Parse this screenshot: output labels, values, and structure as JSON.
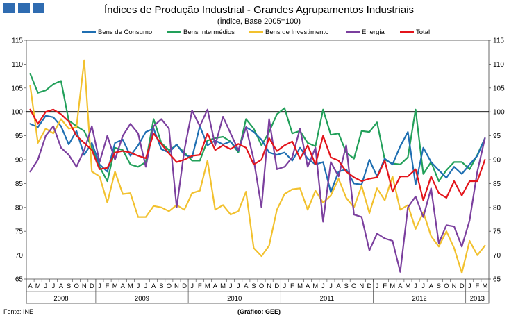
{
  "logo": {
    "name": "publisher-logo"
  },
  "header": {
    "title": "Índices de Produção Industrial - Grandes Agrupamentos Industriais",
    "subtitle": "(Índice, Base 2005=100)"
  },
  "footer": {
    "source": "Fonte: INE",
    "credit": "(Gráfico: GEE)"
  },
  "chart_data": {
    "type": "line",
    "title": "Índices de Produção Industrial - Grandes Agrupamentos Industriais",
    "subtitle": "(Índice, Base 2005=100)",
    "ylim": [
      65,
      115
    ],
    "yticks": [
      65,
      70,
      75,
      80,
      85,
      90,
      95,
      100,
      105,
      110,
      115
    ],
    "reference_line": 100,
    "grid": false,
    "legend_position": "top",
    "month_labels": [
      "A",
      "M",
      "J",
      "J",
      "A",
      "S",
      "O",
      "N",
      "D",
      "J",
      "F",
      "M",
      "A",
      "M",
      "J",
      "J",
      "A",
      "S",
      "O",
      "N",
      "D",
      "J",
      "F",
      "M",
      "A",
      "M",
      "J",
      "J",
      "A",
      "S",
      "O",
      "N",
      "D",
      "J",
      "F",
      "M",
      "A",
      "M",
      "J",
      "J",
      "A",
      "S",
      "O",
      "N",
      "D",
      "J",
      "F",
      "M",
      "A",
      "M",
      "J",
      "J",
      "A",
      "S",
      "O",
      "N",
      "D",
      "J",
      "F",
      "M"
    ],
    "year_groups": [
      {
        "label": "2008",
        "start": 0,
        "count": 9
      },
      {
        "label": "2009",
        "start": 9,
        "count": 12
      },
      {
        "label": "2010",
        "start": 21,
        "count": 12
      },
      {
        "label": "2011",
        "start": 33,
        "count": 12
      },
      {
        "label": "2012",
        "start": 45,
        "count": 12
      },
      {
        "label": "2013",
        "start": 57,
        "count": 3
      }
    ],
    "series": [
      {
        "name": "Bens de Consumo",
        "color": "#1f6fb2",
        "values": [
          97.5,
          96.8,
          99.2,
          98.9,
          97.0,
          93.2,
          96.0,
          91.0,
          93.5,
          89.0,
          87.5,
          93.5,
          94.2,
          90.8,
          93.0,
          95.8,
          96.5,
          92.2,
          91.5,
          93.2,
          91.0,
          90.5,
          97.0,
          93.0,
          94.0,
          93.2,
          93.8,
          91.8,
          96.8,
          95.8,
          94.2,
          91.5,
          91.0,
          91.5,
          89.8,
          92.5,
          90.2,
          89.0,
          89.5,
          83.2,
          87.5,
          88.0,
          85.0,
          84.8,
          90.0,
          86.5,
          90.2,
          89.0,
          92.8,
          95.8,
          84.8,
          92.5,
          89.5,
          87.8,
          86.2,
          88.5,
          87.0,
          89.0,
          90.8,
          94.5
        ]
      },
      {
        "name": "Bens Intermédios",
        "color": "#22a05a",
        "values": [
          108.0,
          104.0,
          104.5,
          105.8,
          106.5,
          98.2,
          97.0,
          96.0,
          92.5,
          88.5,
          85.5,
          92.5,
          92.0,
          89.0,
          88.5,
          89.5,
          98.5,
          93.5,
          92.0,
          93.0,
          91.5,
          89.8,
          89.8,
          94.0,
          94.5,
          94.8,
          93.8,
          91.5,
          98.5,
          96.5,
          93.0,
          95.8,
          99.5,
          100.8,
          95.5,
          96.0,
          93.5,
          92.8,
          100.5,
          95.2,
          95.5,
          91.5,
          90.2,
          96.0,
          95.8,
          97.8,
          90.0,
          89.2,
          89.0,
          90.5,
          100.5,
          87.0,
          89.5,
          85.5,
          87.8,
          89.5,
          89.5,
          88.0,
          91.0,
          94.5
        ]
      },
      {
        "name": "Bens de Investimento",
        "color": "#f2c12e",
        "values": [
          105.5,
          93.5,
          96.5,
          95.5,
          98.5,
          96.5,
          96.8,
          110.8,
          87.5,
          86.5,
          81.0,
          87.5,
          82.8,
          83.0,
          78.0,
          78.0,
          80.3,
          80.0,
          79.2,
          80.5,
          79.5,
          83.0,
          83.5,
          89.8,
          79.5,
          80.5,
          78.5,
          79.2,
          83.3,
          71.5,
          69.8,
          72.0,
          79.5,
          82.8,
          83.8,
          84.0,
          79.5,
          83.5,
          81.0,
          82.5,
          86.0,
          82.0,
          80.0,
          84.5,
          78.8,
          84.0,
          81.5,
          86.5,
          79.5,
          80.5,
          75.5,
          79.0,
          74.0,
          71.8,
          75.0,
          71.5,
          66.3,
          73.0,
          70.0,
          72.0
        ]
      },
      {
        "name": "Energia",
        "color": "#7b3f9e",
        "values": [
          87.5,
          90.0,
          95.0,
          97.0,
          92.5,
          91.0,
          88.5,
          92.0,
          97.0,
          89.5,
          95.0,
          90.0,
          95.0,
          97.5,
          95.5,
          88.5,
          97.0,
          98.5,
          96.5,
          80.0,
          92.0,
          100.3,
          97.0,
          100.5,
          93.0,
          99.0,
          95.5,
          92.0,
          96.8,
          90.0,
          80.0,
          98.5,
          88.0,
          88.5,
          90.5,
          96.5,
          88.5,
          92.5,
          77.0,
          89.5,
          86.5,
          93.0,
          78.5,
          78.0,
          71.0,
          74.5,
          73.5,
          73.0,
          66.5,
          80.0,
          82.3,
          78.0,
          84.0,
          72.5,
          76.3,
          76.0,
          71.8,
          77.3,
          87.5,
          94.5
        ]
      },
      {
        "name": "Total",
        "color": "#e3141b",
        "values": [
          100.5,
          97.5,
          100.0,
          100.5,
          99.5,
          98.0,
          95.0,
          93.5,
          92.0,
          88.0,
          88.3,
          91.5,
          91.8,
          91.5,
          90.8,
          90.3,
          95.5,
          93.3,
          91.3,
          89.5,
          90.0,
          90.8,
          91.0,
          95.5,
          92.0,
          93.0,
          92.2,
          93.3,
          92.5,
          89.0,
          90.0,
          94.5,
          91.8,
          93.0,
          93.8,
          90.2,
          93.0,
          89.0,
          95.0,
          90.5,
          89.8,
          87.5,
          86.3,
          85.5,
          86.0,
          86.3,
          89.8,
          83.3,
          86.5,
          86.5,
          88.0,
          81.5,
          86.5,
          83.0,
          82.0,
          85.5,
          82.5,
          85.5,
          85.5,
          90.0
        ]
      }
    ]
  }
}
